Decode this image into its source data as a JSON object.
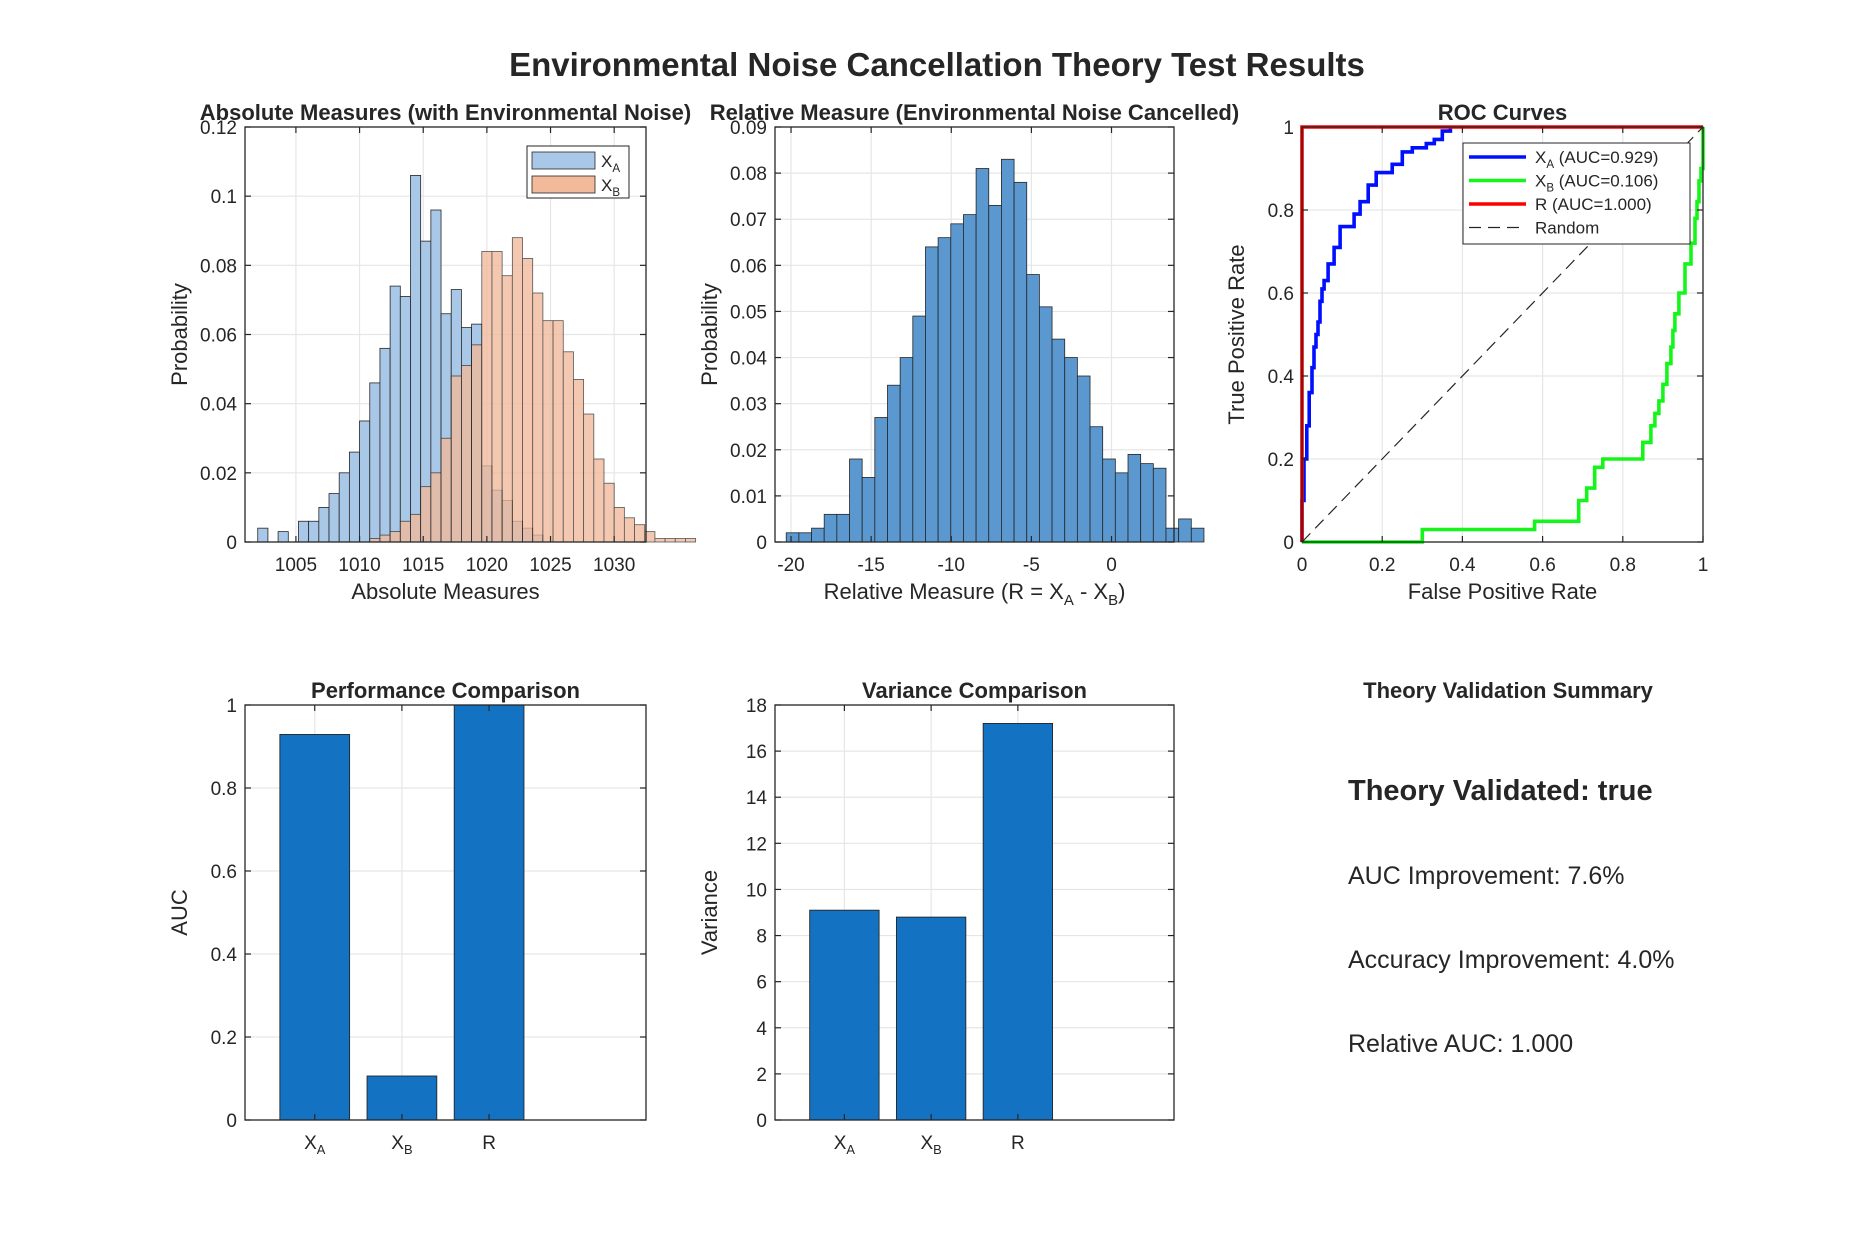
{
  "figure": {
    "title": "Environmental Noise Cancellation Theory Test Results"
  },
  "colors": {
    "xa_hist": "#a9c8e8",
    "xb_hist": "#f2b99a",
    "r_hist": "#5a98cf",
    "bar": "#1372c2",
    "roc_xa": "#0010ff",
    "roc_xb": "#15f51c",
    "roc_r": "#ff0000",
    "random": "#262626"
  },
  "chart_data": [
    {
      "id": "absolute",
      "type": "histogram",
      "title": "Absolute Measures (with Environmental Noise)",
      "xlabel": "Absolute Measures",
      "ylabel": "Probability",
      "xlim": [
        1001,
        1032.5
      ],
      "ylim": [
        0,
        0.12
      ],
      "xticks": [
        1005,
        1010,
        1015,
        1020,
        1025,
        1030
      ],
      "yticks": [
        0,
        0.02,
        0.04,
        0.06,
        0.08,
        0.1,
        0.12
      ],
      "yticklabels": [
        "0",
        "0.02",
        "0.04",
        "0.06",
        "0.08",
        "0.1",
        "0.12"
      ],
      "legend": {
        "position": "top-right",
        "entries": [
          {
            "main": "X",
            "sub": "A"
          },
          {
            "main": "X",
            "sub": "B"
          }
        ]
      },
      "series": [
        {
          "name": "X_A",
          "bin_start": 1002,
          "bin_width": 0.8,
          "values": [
            0.004,
            0,
            0.003,
            0,
            0.006,
            0.006,
            0.01,
            0.014,
            0.02,
            0.026,
            0.035,
            0.046,
            0.056,
            0.074,
            0.071,
            0.106,
            0.087,
            0.096,
            0.066,
            0.073,
            0.062,
            0.063,
            0.022,
            0.015,
            0.012,
            0.006,
            0.004,
            0.002
          ]
        },
        {
          "name": "X_B",
          "bin_start": 1010.8,
          "bin_width": 0.8,
          "values": [
            0.001,
            0.002,
            0.003,
            0.006,
            0.008,
            0.016,
            0.02,
            0.03,
            0.048,
            0.051,
            0.057,
            0.084,
            0.084,
            0.077,
            0.088,
            0.082,
            0.072,
            0.064,
            0.064,
            0.055,
            0.047,
            0.037,
            0.024,
            0.017,
            0.01,
            0.007,
            0.005,
            0.003,
            0.001,
            0.001,
            0.001,
            0.001
          ]
        }
      ]
    },
    {
      "id": "relative",
      "type": "histogram",
      "title": "Relative Measure (Environmental Noise Cancelled)",
      "xlabel": "Relative  Measure  (R  =  X",
      "xlabel_sub_a": "A",
      "xlabel_mid": "  -  X",
      "xlabel_sub_b": "B",
      "xlabel_end": ")",
      "ylabel": "Probability",
      "xlim": [
        -21,
        3.9
      ],
      "ylim": [
        0,
        0.09
      ],
      "xticks": [
        -20,
        -15,
        -10,
        -5,
        0
      ],
      "yticks": [
        0,
        0.01,
        0.02,
        0.03,
        0.04,
        0.05,
        0.06,
        0.07,
        0.08,
        0.09
      ],
      "yticklabels": [
        "0",
        "0.01",
        "0.02",
        "0.03",
        "0.04",
        "0.05",
        "0.06",
        "0.07",
        "0.08",
        "0.09"
      ],
      "series": [
        {
          "name": "R",
          "bin_start": -20.3,
          "bin_width": 0.79,
          "values": [
            0.002,
            0.002,
            0.003,
            0.006,
            0.006,
            0.018,
            0.014,
            0.027,
            0.034,
            0.04,
            0.049,
            0.064,
            0.066,
            0.069,
            0.071,
            0.081,
            0.073,
            0.083,
            0.078,
            0.058,
            0.051,
            0.044,
            0.04,
            0.036,
            0.025,
            0.018,
            0.015,
            0.019,
            0.017,
            0.016,
            0.003,
            0.005,
            0.003
          ]
        }
      ]
    },
    {
      "id": "roc",
      "type": "line",
      "title": "ROC Curves",
      "xlabel": "False Positive Rate",
      "ylabel": "True Positive Rate",
      "xlim": [
        0,
        1
      ],
      "ylim": [
        0,
        1
      ],
      "xticks": [
        0,
        0.2,
        0.4,
        0.6,
        0.8,
        1
      ],
      "yticks": [
        0,
        0.2,
        0.4,
        0.6,
        0.8,
        1
      ],
      "legend": {
        "position": "top-right",
        "entries": [
          {
            "main": "X",
            "sub": "A",
            "rest": "  (AUC=0.929)"
          },
          {
            "main": "X",
            "sub": "B",
            "rest": "  (AUC=0.106)"
          },
          {
            "main": "R (AUC=1.000)",
            "sub": "",
            "rest": ""
          },
          {
            "main": "Random",
            "sub": "",
            "rest": ""
          }
        ]
      },
      "series": [
        {
          "name": "X_A (AUC=0.929)",
          "x": [
            0,
            0,
            0.005,
            0.005,
            0.012,
            0.012,
            0.018,
            0.018,
            0.025,
            0.025,
            0.03,
            0.03,
            0.035,
            0.035,
            0.04,
            0.04,
            0.045,
            0.045,
            0.05,
            0.05,
            0.055,
            0.055,
            0.065,
            0.065,
            0.08,
            0.08,
            0.095,
            0.095,
            0.13,
            0.13,
            0.145,
            0.145,
            0.165,
            0.165,
            0.185,
            0.185,
            0.225,
            0.225,
            0.25,
            0.25,
            0.275,
            0.275,
            0.31,
            0.31,
            0.33,
            0.33,
            0.35,
            0.35,
            0.37,
            0.37
          ],
          "y": [
            0,
            0.1,
            0.1,
            0.2,
            0.2,
            0.28,
            0.28,
            0.36,
            0.36,
            0.42,
            0.42,
            0.47,
            0.47,
            0.5,
            0.5,
            0.53,
            0.53,
            0.58,
            0.58,
            0.61,
            0.61,
            0.63,
            0.63,
            0.67,
            0.67,
            0.71,
            0.71,
            0.76,
            0.76,
            0.79,
            0.79,
            0.82,
            0.82,
            0.86,
            0.86,
            0.89,
            0.89,
            0.91,
            0.91,
            0.94,
            0.94,
            0.95,
            0.95,
            0.96,
            0.96,
            0.97,
            0.97,
            0.99,
            0.99,
            1.0
          ]
        },
        {
          "name": "X_B (AUC=0.106)",
          "x": [
            0,
            0.3,
            0.3,
            0.58,
            0.58,
            0.69,
            0.69,
            0.71,
            0.71,
            0.73,
            0.73,
            0.75,
            0.75,
            0.85,
            0.85,
            0.87,
            0.87,
            0.88,
            0.88,
            0.89,
            0.89,
            0.9,
            0.9,
            0.91,
            0.91,
            0.92,
            0.92,
            0.925,
            0.925,
            0.93,
            0.93,
            0.94,
            0.94,
            0.955,
            0.955,
            0.97,
            0.97,
            0.98,
            0.98,
            0.985,
            0.985,
            0.99,
            0.99,
            0.995,
            0.995,
            1.0,
            1.0
          ],
          "y": [
            0,
            0,
            0.03,
            0.03,
            0.05,
            0.05,
            0.1,
            0.1,
            0.13,
            0.13,
            0.18,
            0.18,
            0.2,
            0.2,
            0.24,
            0.24,
            0.28,
            0.28,
            0.31,
            0.31,
            0.34,
            0.34,
            0.38,
            0.38,
            0.43,
            0.43,
            0.47,
            0.47,
            0.51,
            0.51,
            0.55,
            0.55,
            0.6,
            0.6,
            0.67,
            0.67,
            0.72,
            0.72,
            0.78,
            0.78,
            0.82,
            0.82,
            0.87,
            0.87,
            0.9,
            0.9,
            1.0
          ]
        },
        {
          "name": "R (AUC=1.000)",
          "x": [
            0,
            0,
            1
          ],
          "y": [
            0,
            1,
            1
          ]
        },
        {
          "name": "Random",
          "x": [
            0,
            1
          ],
          "y": [
            0,
            1
          ]
        }
      ]
    },
    {
      "id": "performance",
      "type": "bar",
      "title": "Performance Comparison",
      "xlabel": "",
      "ylabel": "AUC",
      "ylim": [
        0,
        1
      ],
      "yticks": [
        0,
        0.2,
        0.4,
        0.6,
        0.8,
        1
      ],
      "categories": [
        {
          "main": "X",
          "sub": "A"
        },
        {
          "main": "X",
          "sub": "B"
        },
        {
          "main": "R",
          "sub": ""
        }
      ],
      "values": [
        0.929,
        0.106,
        1.0
      ]
    },
    {
      "id": "variance",
      "type": "bar",
      "title": "Variance Comparison",
      "xlabel": "",
      "ylabel": "Variance",
      "ylim": [
        0,
        18
      ],
      "yticks": [
        0,
        2,
        4,
        6,
        8,
        10,
        12,
        14,
        16,
        18
      ],
      "categories": [
        {
          "main": "X",
          "sub": "A"
        },
        {
          "main": "X",
          "sub": "B"
        },
        {
          "main": "R",
          "sub": ""
        }
      ],
      "values": [
        9.1,
        8.8,
        17.2
      ]
    }
  ],
  "summary": {
    "title": "Theory Validation Summary",
    "validated": "Theory Validated: true",
    "auc_improvement": "AUC Improvement: 7.6%",
    "accuracy_improvement": "Accuracy Improvement: 4.0%",
    "relative_auc": "Relative AUC: 1.000"
  }
}
